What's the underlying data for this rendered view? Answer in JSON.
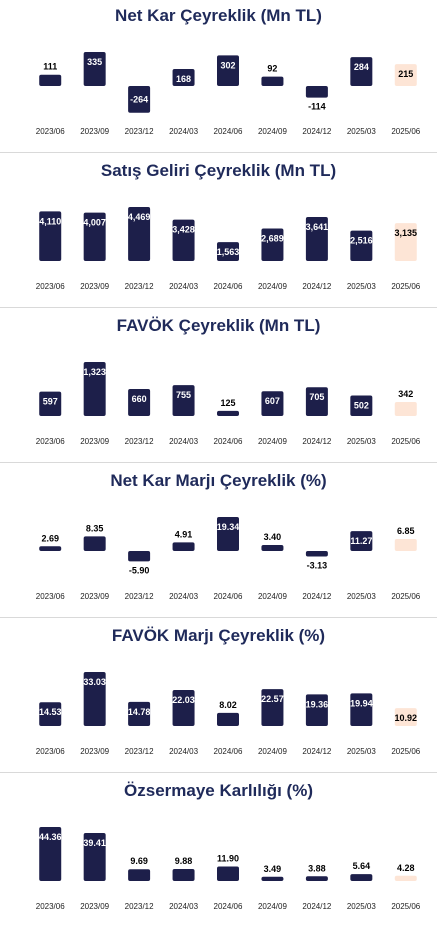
{
  "colors": {
    "actual": "#1d1f4a",
    "estimate": "#fde5d6",
    "title": "#1f2a5a",
    "label_on_bar": "#ffffff",
    "label": "#000000"
  },
  "chart_data": [
    {
      "type": "bar",
      "title": "Net Kar Çeyreklik (Mn TL)",
      "categories": [
        "2023/06",
        "2023/09",
        "2023/12",
        "2024/03",
        "2024/06",
        "2024/09",
        "2024/12",
        "2025/03",
        "2025/06"
      ],
      "values": [
        111,
        335,
        -264,
        168,
        302,
        92,
        -114,
        284,
        215
      ],
      "value_labels": [
        "111",
        "335",
        "-264",
        "168",
        "302",
        "92",
        "-114",
        "284",
        "215"
      ],
      "estimate_last": true
    },
    {
      "type": "bar",
      "title": "Satış Geliri Çeyreklik (Mn TL)",
      "categories": [
        "2023/06",
        "2023/09",
        "2023/12",
        "2024/03",
        "2024/06",
        "2024/09",
        "2024/12",
        "2025/03",
        "2025/06"
      ],
      "values": [
        4110,
        4007,
        4469,
        3428,
        1563,
        2689,
        3641,
        2516,
        3135
      ],
      "value_labels": [
        "4,110",
        "4,007",
        "4,469",
        "3,428",
        "1,563",
        "2,689",
        "3,641",
        "2,516",
        "3,135"
      ],
      "estimate_last": true
    },
    {
      "type": "bar",
      "title": "FAVÖK Çeyreklik (Mn TL)",
      "categories": [
        "2023/06",
        "2023/09",
        "2023/12",
        "2024/03",
        "2024/06",
        "2024/09",
        "2024/12",
        "2025/03",
        "2025/06"
      ],
      "values": [
        597,
        1323,
        660,
        755,
        125,
        607,
        705,
        502,
        342
      ],
      "value_labels": [
        "597",
        "1,323",
        "660",
        "755",
        "125",
        "607",
        "705",
        "502",
        "342"
      ],
      "estimate_last": true
    },
    {
      "type": "bar",
      "title": "Net Kar Marjı Çeyreklik (%)",
      "categories": [
        "2023/06",
        "2023/09",
        "2023/12",
        "2024/03",
        "2024/06",
        "2024/09",
        "2024/12",
        "2025/03",
        "2025/06"
      ],
      "values": [
        2.69,
        8.35,
        -5.9,
        4.91,
        19.34,
        3.4,
        -3.13,
        11.27,
        6.85
      ],
      "value_labels": [
        "2.69",
        "8.35",
        "-5.90",
        "4.91",
        "19.34",
        "3.40",
        "-3.13",
        "11.27",
        "6.85"
      ],
      "estimate_last": true
    },
    {
      "type": "bar",
      "title": "FAVÖK Marjı Çeyreklik (%)",
      "categories": [
        "2023/06",
        "2023/09",
        "2023/12",
        "2024/03",
        "2024/06",
        "2024/09",
        "2024/12",
        "2025/03",
        "2025/06"
      ],
      "values": [
        14.53,
        33.03,
        14.78,
        22.03,
        8.02,
        22.57,
        19.36,
        19.94,
        10.92
      ],
      "value_labels": [
        "14.53",
        "33.03",
        "14.78",
        "22.03",
        "8.02",
        "22.57",
        "19.36",
        "19.94",
        "10.92"
      ],
      "estimate_last": true
    },
    {
      "type": "bar",
      "title": "Özsermaye Karlılığı (%)",
      "categories": [
        "2023/06",
        "2023/09",
        "2023/12",
        "2024/03",
        "2024/06",
        "2024/09",
        "2024/12",
        "2025/03",
        "2025/06"
      ],
      "values": [
        44.36,
        39.41,
        9.69,
        9.88,
        11.9,
        3.49,
        3.88,
        5.64,
        4.28
      ],
      "value_labels": [
        "44.36",
        "39.41",
        "9.69",
        "9.88",
        "11.90",
        "3.49",
        "3.88",
        "5.64",
        "4.28"
      ],
      "estimate_last": true
    }
  ]
}
